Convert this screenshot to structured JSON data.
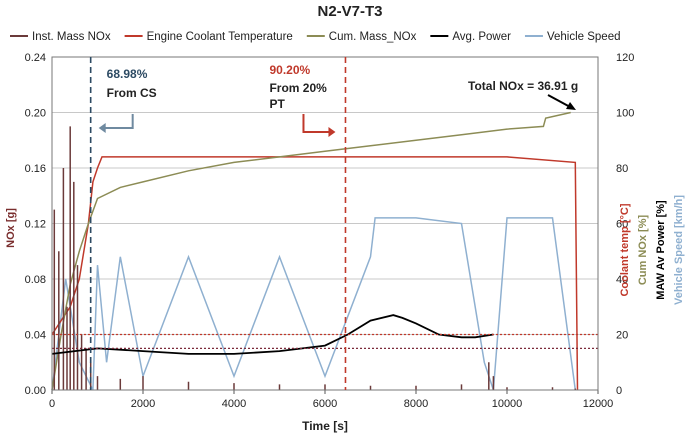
{
  "chart_data": {
    "type": "line",
    "title": "N2-V7-T3",
    "xlabel": "Time [s]",
    "ylabel_left": "NOx [g]",
    "ylabels_right": [
      {
        "text": "Coolant temp [°C]",
        "color": "#c0392b"
      },
      {
        "text": "Cum NOx [%]",
        "color": "#8c8c55"
      },
      {
        "text": "MAW Av Power [%]",
        "color": "#000000"
      },
      {
        "text": "Vehicle Speed [km/h]",
        "color": "#8fb0d0"
      }
    ],
    "xlim": [
      0,
      12000
    ],
    "ylim_left": [
      0,
      0.24
    ],
    "ylim_right": [
      0,
      120
    ],
    "xticks": [
      "0",
      "2000",
      "4000",
      "6000",
      "8000",
      "10000",
      "12000"
    ],
    "yticks_left": [
      "0.00",
      "0.04",
      "0.08",
      "0.12",
      "0.16",
      "0.20",
      "0.24"
    ],
    "yticks_right": [
      "0",
      "20",
      "40",
      "60",
      "80",
      "100",
      "120"
    ],
    "grid": true,
    "legend_position": "top",
    "series": [
      {
        "name": "Inst. Mass NOx",
        "color": "#6b3a3a",
        "axis": "left",
        "x": [
          50,
          150,
          250,
          330,
          400,
          480,
          560,
          650,
          750,
          850,
          1000,
          1500,
          2000,
          3000,
          4000,
          5000,
          6000,
          7000,
          8000,
          9000,
          9600,
          9700,
          10000,
          11000,
          11500
        ],
        "values": [
          0.13,
          0.1,
          0.16,
          0.06,
          0.19,
          0.15,
          0.09,
          0.04,
          0.03,
          0.02,
          0.01,
          0.008,
          0.01,
          0.006,
          0.005,
          0.004,
          0.004,
          0.003,
          0.003,
          0.004,
          0.02,
          0.01,
          0.002,
          0.002,
          0.001
        ]
      },
      {
        "name": "Engine Coolant Temperature",
        "color": "#c0392b",
        "axis": "right",
        "x": [
          0,
          200,
          400,
          600,
          800,
          900,
          1000,
          1100,
          2000,
          4000,
          6000,
          8000,
          10000,
          11500,
          11550
        ],
        "values": [
          20,
          25,
          30,
          40,
          60,
          75,
          80,
          84,
          84,
          84,
          84,
          84,
          84,
          82,
          0
        ]
      },
      {
        "name": "Cum. Mass_NOx",
        "color": "#8c8c55",
        "axis": "right",
        "x": [
          0,
          200,
          400,
          600,
          800,
          1000,
          1500,
          2000,
          3000,
          4000,
          5000,
          6000,
          7000,
          8000,
          9000,
          10000,
          10800,
          10850,
          11400
        ],
        "values": [
          0,
          20,
          38,
          50,
          60,
          69,
          73,
          75,
          79,
          82,
          84,
          86,
          88,
          90,
          92,
          94,
          95,
          98,
          100
        ]
      },
      {
        "name": "Avg. Power",
        "color": "#000000",
        "axis": "right",
        "x": [
          0,
          500,
          1000,
          2000,
          3000,
          4000,
          5000,
          6000,
          6500,
          7000,
          7500,
          7700,
          8000,
          8500,
          9000,
          9300,
          9700
        ],
        "values": [
          13,
          14,
          15,
          14,
          13,
          13,
          14,
          16,
          20,
          25,
          27,
          26,
          24,
          20,
          19,
          19,
          20
        ]
      },
      {
        "name": "Vehicle Speed",
        "color": "#8fb0d0",
        "axis": "right",
        "x": [
          0,
          300,
          600,
          900,
          1000,
          1200,
          1500,
          2000,
          3000,
          4000,
          5000,
          6000,
          7000,
          7100,
          8000,
          9000,
          9500,
          9700,
          10000,
          11000,
          11500
        ],
        "values": [
          0,
          40,
          10,
          0,
          45,
          10,
          48,
          5,
          48,
          5,
          48,
          5,
          48,
          62,
          62,
          60,
          10,
          0,
          62,
          62,
          0
        ]
      }
    ],
    "reference_lines": [
      {
        "value": 20,
        "axis": "right",
        "color": "#c0392b"
      },
      {
        "value": 15,
        "axis": "right",
        "color": "#7b2a3a"
      }
    ],
    "annotations": [
      {
        "x": 850,
        "color": "#2c4a63",
        "pct": "68.98%",
        "label": "From CS"
      },
      {
        "x": 6450,
        "color": "#c0392b",
        "pct": "90.20%",
        "label": "From 20%",
        "label2": "PT"
      }
    ],
    "total_label": "Total NOx = 36.91 g"
  }
}
